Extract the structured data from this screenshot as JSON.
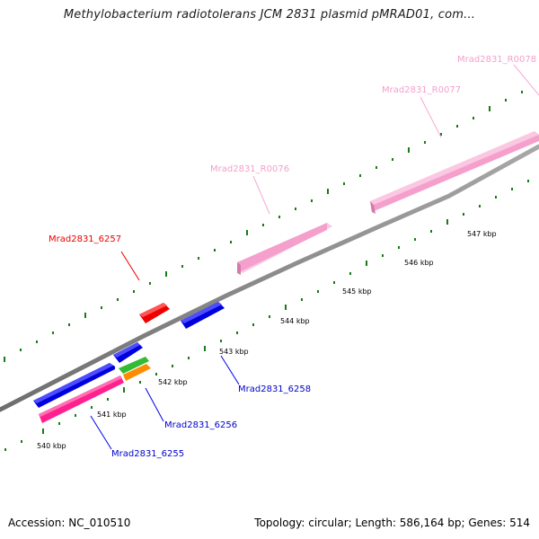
{
  "title": "Methylobacterium radiotolerans JCM 2831 plasmid pMRAD01, com...",
  "footer": {
    "accession": "Accession: NC_010510",
    "summary": "Topology: circular; Length: 586,164 bp; Genes: 514"
  },
  "colors": {
    "backbone": "#8c8c8c",
    "ticks": "#1a7a1a",
    "red_gene": "#ff0000",
    "blue_gene": "#0000ee",
    "pink_rna": "#f9a8d4",
    "magenta_gene": "#ff1493",
    "green_gene": "#44cc44",
    "orange_gene": "#ff8c00"
  },
  "labels": {
    "mrad6257": "Mrad2831_6257",
    "mradR0076": "Mrad2831_R0076",
    "mradR0077": "Mrad2831_R0077",
    "mradR0078": "Mrad2831_R0078",
    "mrad6258": "Mrad2831_6258",
    "mrad6256": "Mrad2831_6256",
    "mrad6255": "Mrad2831_6255"
  },
  "kbp_labels": {
    "k540": "540 kbp",
    "k541": "541 kbp",
    "k542": "542 kbp",
    "k543": "543 kbp",
    "k544": "544 kbp",
    "k545": "545 kbp",
    "k546": "546 kbp",
    "k547": "547 kbp"
  }
}
